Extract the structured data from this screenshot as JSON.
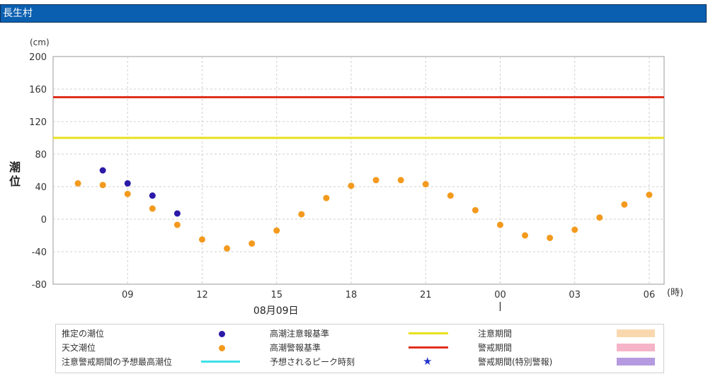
{
  "header": {
    "title": "長生村"
  },
  "chart_data": {
    "type": "scatter",
    "ylabel": "潮位",
    "yunit": "(cm)",
    "xunit": "(時)",
    "date_label": "08月09日",
    "ylim": [
      -80,
      200
    ],
    "yticks": [
      -80,
      -40,
      0,
      40,
      80,
      120,
      160,
      200
    ],
    "x_range_hours": [
      6,
      30
    ],
    "xticks": [
      {
        "h": 9,
        "label": "09"
      },
      {
        "h": 12,
        "label": "12"
      },
      {
        "h": 15,
        "label": "15"
      },
      {
        "h": 18,
        "label": "18"
      },
      {
        "h": 21,
        "label": "21"
      },
      {
        "h": 24,
        "label": "00"
      },
      {
        "h": 27,
        "label": "03"
      },
      {
        "h": 30,
        "label": "06"
      }
    ],
    "grid": true,
    "thresholds": [
      {
        "name": "高潮注意報基準",
        "value": 100,
        "color": "#e8e020"
      },
      {
        "name": "高潮警報基準",
        "value": 150,
        "color": "#e0301e"
      }
    ],
    "series": [
      {
        "name": "推定の潮位",
        "color": "#2b1aa8",
        "points": [
          [
            8,
            60
          ],
          [
            9,
            44
          ],
          [
            10,
            29
          ],
          [
            11,
            7
          ]
        ]
      },
      {
        "name": "天文潮位",
        "color": "#f39a1e",
        "points": [
          [
            7,
            44
          ],
          [
            8,
            42
          ],
          [
            9,
            31
          ],
          [
            10,
            13
          ],
          [
            11,
            -7
          ],
          [
            12,
            -25
          ],
          [
            13,
            -36
          ],
          [
            14,
            -30
          ],
          [
            15,
            -14
          ],
          [
            16,
            6
          ],
          [
            17,
            26
          ],
          [
            18,
            41
          ],
          [
            19,
            48
          ],
          [
            20,
            48
          ],
          [
            21,
            43
          ],
          [
            22,
            29
          ],
          [
            23,
            11
          ],
          [
            24,
            -7
          ],
          [
            25,
            -20
          ],
          [
            26,
            -23
          ],
          [
            27,
            -13
          ],
          [
            28,
            2
          ],
          [
            29,
            18
          ],
          [
            30,
            30
          ]
        ]
      }
    ]
  },
  "legend": {
    "estimated": "推定の潮位",
    "astronomical": "天文潮位",
    "peak_forecast": "注意警戒期間の予想最高潮位",
    "advisory_std": "高潮注意報基準",
    "warning_std": "高潮警報基準",
    "peak_time": "予想されるピーク時刻",
    "advisory_period": "注意期間",
    "warning_period": "警戒期間",
    "special_period": "警戒期間(特別警報)",
    "colors": {
      "estimated": "#2b1aa8",
      "astronomical": "#f39a1e",
      "peak_forecast": "#3fe0e8",
      "advisory_std": "#e8e020",
      "warning_std": "#e0301e",
      "peak_time": "#2233cc",
      "advisory_period": "#f9d8b0",
      "warning_period": "#f5b4c8",
      "special_period": "#b59ae0"
    }
  }
}
